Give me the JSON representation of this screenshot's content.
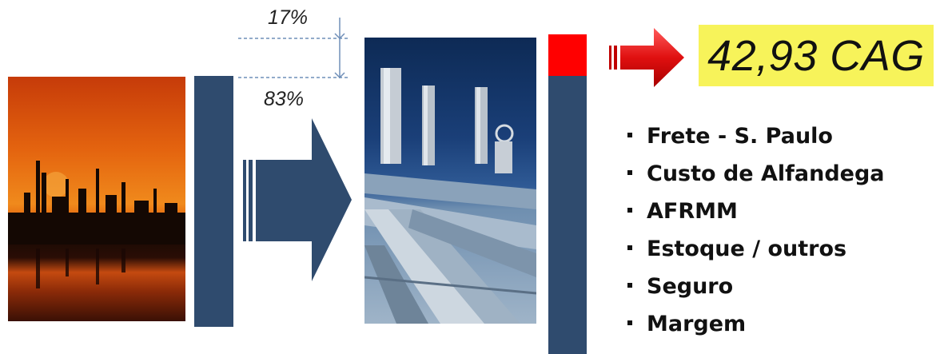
{
  "percent_top": "17%",
  "percent_bottom": "83%",
  "result": "42,93 CAG",
  "cost_items": [
    "Frete - S. Paulo",
    "Custo de Alfandega",
    "AFRMM",
    "Estoque / outros",
    "Seguro",
    "Margem"
  ],
  "colors": {
    "bar": "#2f4b6e",
    "highlight_segment": "#ff0000",
    "result_box": "#f7f35a",
    "red_arrow": "#e01010"
  }
}
